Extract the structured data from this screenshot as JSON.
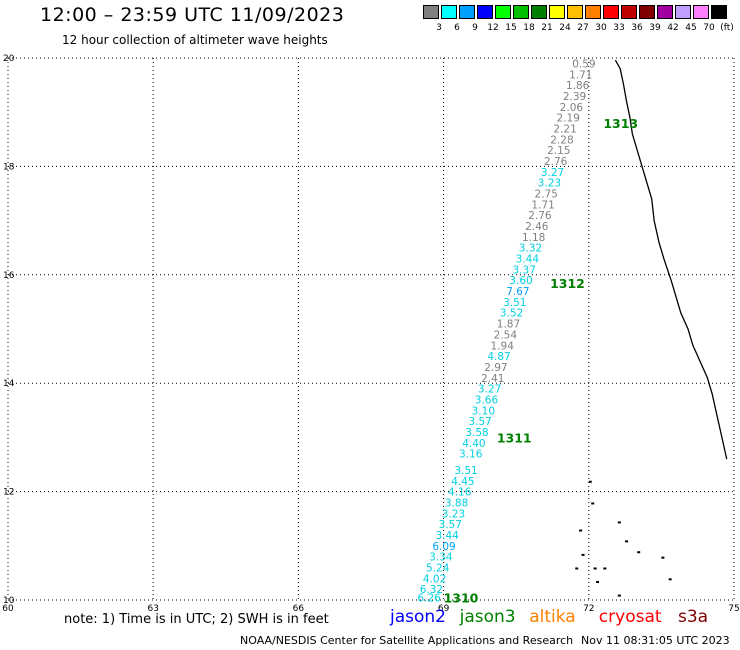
{
  "header": {
    "title": "12:00 – 23:59 UTC 11/09/2023",
    "subtitle": "12 hour collection of altimeter wave heights"
  },
  "legend": {
    "unit": "(ft)",
    "items": [
      {
        "color": "#808080",
        "label": "3"
      },
      {
        "color": "#00ffff",
        "label": "6"
      },
      {
        "color": "#00a0ff",
        "label": "9"
      },
      {
        "color": "#0000ff",
        "label": "12"
      },
      {
        "color": "#00ff00",
        "label": "15"
      },
      {
        "color": "#00c000",
        "label": "18"
      },
      {
        "color": "#008000",
        "label": "21"
      },
      {
        "color": "#ffff00",
        "label": "24"
      },
      {
        "color": "#ffc000",
        "label": "27"
      },
      {
        "color": "#ff8000",
        "label": "30"
      },
      {
        "color": "#ff0000",
        "label": "33"
      },
      {
        "color": "#c00000",
        "label": "36"
      },
      {
        "color": "#800000",
        "label": "39"
      },
      {
        "color": "#a000a0",
        "label": "42"
      },
      {
        "color": "#c0a0ff",
        "label": "45"
      },
      {
        "color": "#ff80ff",
        "label": "70"
      },
      {
        "color": "#000000",
        "label": ""
      }
    ]
  },
  "map": {
    "lon_range": [
      60,
      75
    ],
    "lat_range": [
      10,
      20
    ],
    "x_ticks": [
      "60",
      "63",
      "66",
      "69",
      "72",
      "75"
    ],
    "y_ticks": [
      "10",
      "12",
      "14",
      "16",
      "18",
      "20"
    ],
    "gray_color": "#808080",
    "cyan_color": "#00d0e0",
    "pass_color": "#008000",
    "pass_labels": [
      {
        "text": "1313",
        "lon": 72.3,
        "lat": 18.8
      },
      {
        "text": "1312",
        "lon": 71.2,
        "lat": 15.85
      },
      {
        "text": "1311",
        "lon": 70.1,
        "lat": 13.0
      },
      {
        "text": "1310",
        "lon": 69.0,
        "lat": 10.05
      }
    ],
    "wave_heights": [
      {
        "v": "0.59",
        "lat": 19.9,
        "c": "g"
      },
      {
        "v": "1.71",
        "lat": 19.7,
        "c": "g"
      },
      {
        "v": "1.86",
        "lat": 19.5,
        "c": "g"
      },
      {
        "v": "2.39",
        "lat": 19.3,
        "c": "g"
      },
      {
        "v": "2.06",
        "lat": 19.1,
        "c": "g"
      },
      {
        "v": "2.19",
        "lat": 18.9,
        "c": "g"
      },
      {
        "v": "2.21",
        "lat": 18.7,
        "c": "g"
      },
      {
        "v": "2.28",
        "lat": 18.5,
        "c": "g"
      },
      {
        "v": "2.15",
        "lat": 18.3,
        "c": "g"
      },
      {
        "v": "2.76",
        "lat": 18.1,
        "c": "g"
      },
      {
        "v": "3.27",
        "lat": 17.9,
        "c": "c"
      },
      {
        "v": "3.23",
        "lat": 17.7,
        "c": "c"
      },
      {
        "v": "2.75",
        "lat": 17.5,
        "c": "g"
      },
      {
        "v": "1.71",
        "lat": 17.3,
        "c": "g"
      },
      {
        "v": "2.76",
        "lat": 17.1,
        "c": "g"
      },
      {
        "v": "2.46",
        "lat": 16.9,
        "c": "g"
      },
      {
        "v": "1.18",
        "lat": 16.7,
        "c": "g"
      },
      {
        "v": "3.32",
        "lat": 16.5,
        "c": "c"
      },
      {
        "v": "3.44",
        "lat": 16.3,
        "c": "c"
      },
      {
        "v": "3.37",
        "lat": 16.1,
        "c": "c"
      },
      {
        "v": "3.60",
        "lat": 15.9,
        "c": "c"
      },
      {
        "v": "7.67",
        "lat": 15.7,
        "c": "b"
      },
      {
        "v": "3.51",
        "lat": 15.5,
        "c": "c"
      },
      {
        "v": "3.52",
        "lat": 15.3,
        "c": "c"
      },
      {
        "v": "1.87",
        "lat": 15.1,
        "c": "g"
      },
      {
        "v": "2.54",
        "lat": 14.9,
        "c": "g"
      },
      {
        "v": "1.94",
        "lat": 14.7,
        "c": "g"
      },
      {
        "v": "4.87",
        "lat": 14.5,
        "c": "c"
      },
      {
        "v": "2.97",
        "lat": 14.3,
        "c": "g"
      },
      {
        "v": "2.41",
        "lat": 14.1,
        "c": "g"
      },
      {
        "v": "3.27",
        "lat": 13.9,
        "c": "c"
      },
      {
        "v": "3.66",
        "lat": 13.7,
        "c": "c"
      },
      {
        "v": "3.10",
        "lat": 13.5,
        "c": "c"
      },
      {
        "v": "3.57",
        "lat": 13.3,
        "c": "c"
      },
      {
        "v": "3.58",
        "lat": 13.1,
        "c": "c"
      },
      {
        "v": "4.40",
        "lat": 12.9,
        "c": "c"
      },
      {
        "v": "3.16",
        "lat": 12.7,
        "c": "c"
      },
      {
        "v": "3.51",
        "lat": 12.4,
        "c": "c"
      },
      {
        "v": "4.45",
        "lat": 12.2,
        "c": "c"
      },
      {
        "v": "4.16",
        "lat": 12.0,
        "c": "c"
      },
      {
        "v": "3.88",
        "lat": 11.8,
        "c": "c"
      },
      {
        "v": "3.23",
        "lat": 11.6,
        "c": "c"
      },
      {
        "v": "3.57",
        "lat": 11.4,
        "c": "c"
      },
      {
        "v": "3.44",
        "lat": 11.2,
        "c": "c"
      },
      {
        "v": "6.09",
        "lat": 11.0,
        "c": "b"
      },
      {
        "v": "3.34",
        "lat": 10.8,
        "c": "c"
      },
      {
        "v": "5.24",
        "lat": 10.6,
        "c": "c"
      },
      {
        "v": "4.02",
        "lat": 10.4,
        "c": "c"
      },
      {
        "v": "6.32",
        "lat": 10.2,
        "c": "c"
      },
      {
        "v": "6.26",
        "lat": 10.05,
        "c": "c"
      }
    ]
  },
  "footer": {
    "note": "note: 1) Time is in UTC; 2) SWH is in feet",
    "satellites": [
      {
        "name": "jason2",
        "color": "#0000ff"
      },
      {
        "name": "jason3",
        "color": "#008000"
      },
      {
        "name": "altika",
        "color": "#ff8000"
      },
      {
        "name": "cryosat",
        "color": "#ff0000"
      },
      {
        "name": "s3a",
        "color": "#800000"
      }
    ],
    "credit": "NOAA/NESDIS Center for Satellite Applications and Research",
    "timestamp": "Nov 11 08:31:05 UTC 2023"
  }
}
